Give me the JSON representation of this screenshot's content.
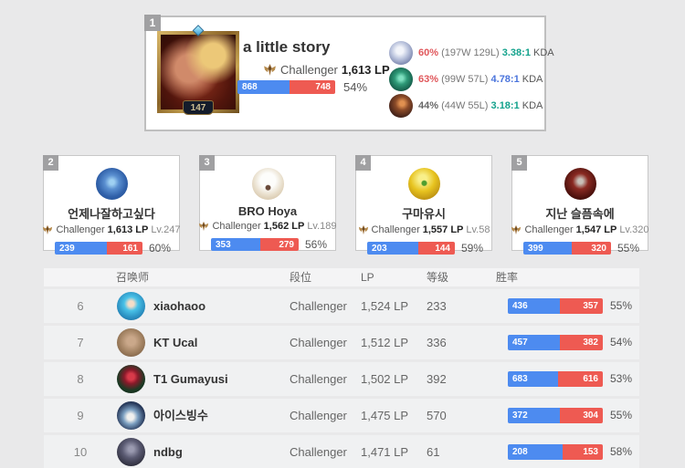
{
  "colors": {
    "win_blue": "#4d8bf0",
    "loss_red": "#ee5a52"
  },
  "top_player": {
    "rank": "1",
    "name": "a little story",
    "tier": "Challenger",
    "lp": "1,613 LP",
    "level": "147",
    "wins": 868,
    "losses": 748,
    "winrate": "54%",
    "champions": [
      {
        "icon": "champion-icon-1",
        "winrate": "60%",
        "winrate_color": "#e0575b",
        "record": "(197W 129L)",
        "kda": "3.38:1",
        "kda_color": "#13a28c",
        "kda_suffix": "KDA"
      },
      {
        "icon": "champion-icon-2",
        "winrate": "63%",
        "winrate_color": "#e0575b",
        "record": "(99W 57L)",
        "kda": "4.78:1",
        "kda_color": "#4a74dc",
        "kda_suffix": "KDA"
      },
      {
        "icon": "champion-icon-3",
        "winrate": "44%",
        "winrate_color": "#676767",
        "record": "(44W 55L)",
        "kda": "3.18:1",
        "kda_color": "#13a28c",
        "kda_suffix": "KDA"
      }
    ]
  },
  "cards": [
    {
      "rank": "2",
      "name": "언제나잘하고싶다",
      "tier": "Challenger",
      "lp": "1,613 LP",
      "level": "Lv.247",
      "wins": 239,
      "losses": 161,
      "winrate": "60%"
    },
    {
      "rank": "3",
      "name": "BRO Hoya",
      "tier": "Challenger",
      "lp": "1,562 LP",
      "level": "Lv.189",
      "wins": 353,
      "losses": 279,
      "winrate": "56%"
    },
    {
      "rank": "4",
      "name": "구마유시",
      "tier": "Challenger",
      "lp": "1,557 LP",
      "level": "Lv.58",
      "wins": 203,
      "losses": 144,
      "winrate": "59%"
    },
    {
      "rank": "5",
      "name": "지난 슬픔속에",
      "tier": "Challenger",
      "lp": "1,547 LP",
      "level": "Lv.320",
      "wins": 399,
      "losses": 320,
      "winrate": "55%"
    }
  ],
  "table": {
    "headers": {
      "summoner": "召唤师",
      "tier": "段位",
      "lp": "LP",
      "level": "等级",
      "winrate": "胜率"
    },
    "rows": [
      {
        "rank": "6",
        "name": "xiaohaoo",
        "tier": "Challenger",
        "lp": "1,524 LP",
        "level": "233",
        "wins": 436,
        "losses": 357,
        "winrate": "55%"
      },
      {
        "rank": "7",
        "name": "KT Ucal",
        "tier": "Challenger",
        "lp": "1,512 LP",
        "level": "336",
        "wins": 457,
        "losses": 382,
        "winrate": "54%"
      },
      {
        "rank": "8",
        "name": "T1 Gumayusi",
        "tier": "Challenger",
        "lp": "1,502 LP",
        "level": "392",
        "wins": 683,
        "losses": 616,
        "winrate": "53%"
      },
      {
        "rank": "9",
        "name": "아이스빙수",
        "tier": "Challenger",
        "lp": "1,475 LP",
        "level": "570",
        "wins": 372,
        "losses": 304,
        "winrate": "55%"
      },
      {
        "rank": "10",
        "name": "ndbg",
        "tier": "Challenger",
        "lp": "1,471 LP",
        "level": "61",
        "wins": 208,
        "losses": 153,
        "winrate": "58%"
      }
    ]
  }
}
